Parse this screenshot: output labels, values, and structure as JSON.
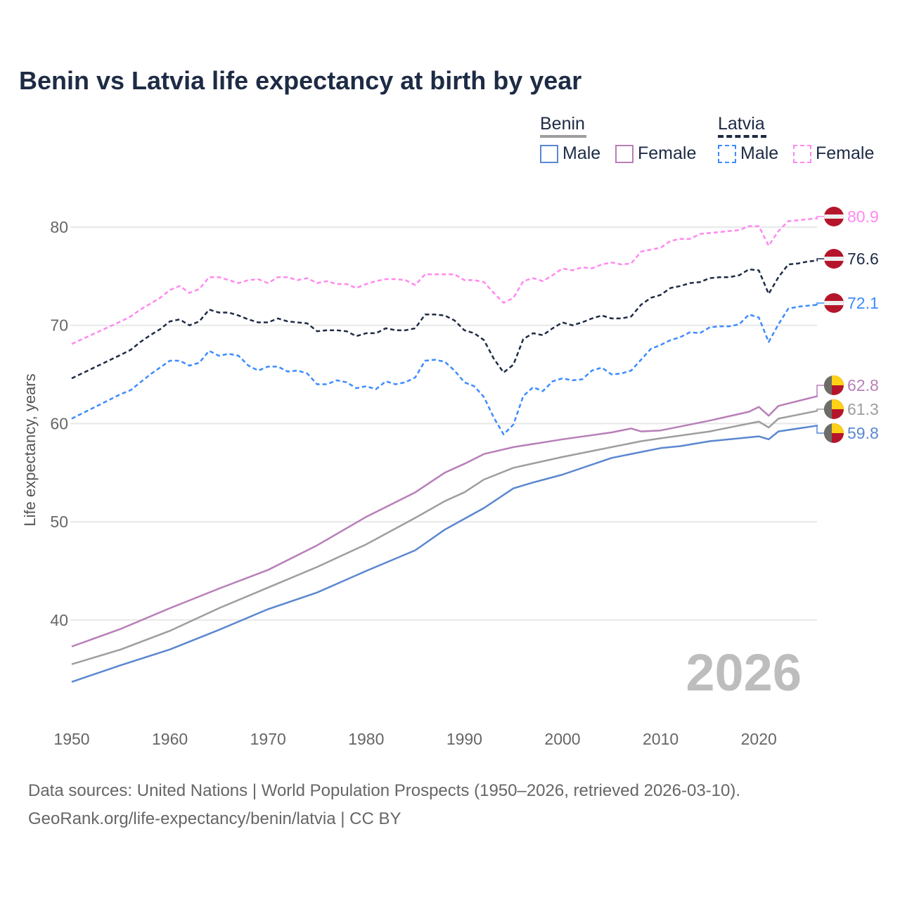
{
  "chart_data": {
    "type": "line",
    "title": "Benin vs Latvia life expectancy at birth by year",
    "xlabel": "",
    "ylabel": "Life expectancy, years",
    "xlim": [
      1950,
      2026
    ],
    "ylim": [
      33,
      82
    ],
    "x_ticks": [
      "1950",
      "1960",
      "1970",
      "1980",
      "1990",
      "2000",
      "2010",
      "2020"
    ],
    "y_ticks": [
      "40",
      "50",
      "60",
      "70",
      "80"
    ],
    "grid": "horizontal",
    "year_label": "2026",
    "legend": {
      "placement": "top-right",
      "groups": [
        {
          "name": "Benin",
          "style": "solid",
          "items": [
            "Male",
            "Female"
          ]
        },
        {
          "name": "Latvia",
          "style": "dashed",
          "items": [
            "Male",
            "Female"
          ]
        }
      ]
    },
    "series": [
      {
        "name": "Latvia Female",
        "country": "Latvia",
        "dash": true,
        "color": "#ff88f0",
        "end_label": "80.9",
        "x": [
          1950,
          1955,
          1956,
          1957,
          1958,
          1959,
          1960,
          1961,
          1962,
          1963,
          1964,
          1965,
          1966,
          1967,
          1968,
          1969,
          1970,
          1971,
          1972,
          1973,
          1974,
          1975,
          1976,
          1977,
          1978,
          1979,
          1980,
          1981,
          1982,
          1983,
          1984,
          1985,
          1986,
          1987,
          1988,
          1989,
          1990,
          1991,
          1992,
          1993,
          1994,
          1995,
          1996,
          1997,
          1998,
          1999,
          2000,
          2001,
          2002,
          2003,
          2004,
          2005,
          2006,
          2007,
          2008,
          2009,
          2010,
          2011,
          2012,
          2013,
          2014,
          2015,
          2016,
          2017,
          2018,
          2019,
          2020,
          2021,
          2022,
          2023,
          2024,
          2025,
          2026
        ],
        "y": [
          68.1,
          70.4,
          70.9,
          71.6,
          72.2,
          72.8,
          73.6,
          74.0,
          73.3,
          73.7,
          74.9,
          74.9,
          74.6,
          74.3,
          74.6,
          74.7,
          74.3,
          74.9,
          74.9,
          74.6,
          74.8,
          74.3,
          74.5,
          74.2,
          74.2,
          73.8,
          74.2,
          74.5,
          74.7,
          74.7,
          74.6,
          74.1,
          75.2,
          75.2,
          75.2,
          75.2,
          74.6,
          74.6,
          74.4,
          73.3,
          72.3,
          72.8,
          74.5,
          74.8,
          74.5,
          75.1,
          75.8,
          75.6,
          75.9,
          75.8,
          76.2,
          76.4,
          76.2,
          76.3,
          77.5,
          77.7,
          77.9,
          78.6,
          78.8,
          78.8,
          79.3,
          79.4,
          79.5,
          79.6,
          79.7,
          80.1,
          80.1,
          78.1,
          79.6,
          80.6,
          80.7,
          80.8,
          80.9
        ]
      },
      {
        "name": "Latvia",
        "country": "Latvia",
        "dash": true,
        "color": "#1e2b45",
        "end_label": "76.6",
        "x": [
          1950,
          1955,
          1956,
          1957,
          1958,
          1959,
          1960,
          1961,
          1962,
          1963,
          1964,
          1965,
          1966,
          1967,
          1968,
          1969,
          1970,
          1971,
          1972,
          1973,
          1974,
          1975,
          1976,
          1977,
          1978,
          1979,
          1980,
          1981,
          1982,
          1983,
          1984,
          1985,
          1986,
          1987,
          1988,
          1989,
          1990,
          1991,
          1992,
          1993,
          1994,
          1995,
          1996,
          1997,
          1998,
          1999,
          2000,
          2001,
          2002,
          2003,
          2004,
          2005,
          2006,
          2007,
          2008,
          2009,
          2010,
          2011,
          2012,
          2013,
          2014,
          2015,
          2016,
          2017,
          2018,
          2019,
          2020,
          2021,
          2022,
          2023,
          2024,
          2025,
          2026
        ],
        "y": [
          64.6,
          67.0,
          67.5,
          68.3,
          69.0,
          69.6,
          70.4,
          70.6,
          70.0,
          70.4,
          71.6,
          71.3,
          71.3,
          71.0,
          70.6,
          70.3,
          70.3,
          70.7,
          70.4,
          70.3,
          70.2,
          69.4,
          69.5,
          69.5,
          69.4,
          68.9,
          69.2,
          69.2,
          69.7,
          69.5,
          69.5,
          69.7,
          71.1,
          71.1,
          71.0,
          70.5,
          69.5,
          69.2,
          68.5,
          66.6,
          65.2,
          66.0,
          68.6,
          69.2,
          69.0,
          69.7,
          70.3,
          70.0,
          70.3,
          70.7,
          71.0,
          70.7,
          70.7,
          70.9,
          72.1,
          72.8,
          73.1,
          73.8,
          74.0,
          74.3,
          74.4,
          74.8,
          74.9,
          74.9,
          75.1,
          75.7,
          75.6,
          73.2,
          74.9,
          76.2,
          76.3,
          76.5,
          76.6
        ]
      },
      {
        "name": "Latvia Male",
        "country": "Latvia",
        "dash": true,
        "color": "#3d8bff",
        "end_label": "72.1",
        "x": [
          1950,
          1955,
          1956,
          1957,
          1958,
          1959,
          1960,
          1961,
          1962,
          1963,
          1964,
          1965,
          1966,
          1967,
          1968,
          1969,
          1970,
          1971,
          1972,
          1973,
          1974,
          1975,
          1976,
          1977,
          1978,
          1979,
          1980,
          1981,
          1982,
          1983,
          1984,
          1985,
          1986,
          1987,
          1988,
          1989,
          1990,
          1991,
          1992,
          1993,
          1994,
          1995,
          1996,
          1997,
          1998,
          1999,
          2000,
          2001,
          2002,
          2003,
          2004,
          2005,
          2006,
          2007,
          2008,
          2009,
          2010,
          2011,
          2012,
          2013,
          2014,
          2015,
          2016,
          2017,
          2018,
          2019,
          2020,
          2021,
          2022,
          2023,
          2024,
          2025,
          2026
        ],
        "y": [
          60.5,
          63.0,
          63.4,
          64.2,
          65.0,
          65.7,
          66.4,
          66.4,
          65.9,
          66.2,
          67.4,
          66.9,
          67.1,
          66.9,
          65.9,
          65.4,
          65.8,
          65.8,
          65.3,
          65.4,
          65.1,
          64.0,
          64.0,
          64.4,
          64.2,
          63.6,
          63.8,
          63.5,
          64.3,
          64.0,
          64.2,
          64.7,
          66.4,
          66.5,
          66.3,
          65.4,
          64.2,
          63.8,
          62.7,
          60.6,
          58.9,
          59.9,
          62.8,
          63.7,
          63.3,
          64.3,
          64.6,
          64.4,
          64.5,
          65.4,
          65.7,
          65.0,
          65.1,
          65.4,
          66.5,
          67.6,
          68.0,
          68.5,
          68.8,
          69.3,
          69.2,
          69.8,
          69.9,
          69.9,
          70.1,
          71.1,
          70.8,
          68.3,
          70.1,
          71.7,
          71.9,
          72.0,
          72.1
        ]
      },
      {
        "name": "Benin Female",
        "country": "Benin",
        "dash": false,
        "color": "#b87fb8",
        "end_label": "62.8",
        "x": [
          1950,
          1955,
          1960,
          1965,
          1970,
          1975,
          1980,
          1985,
          1988,
          1990,
          1992,
          1995,
          2000,
          2005,
          2007,
          2008,
          2010,
          2015,
          2019,
          2020,
          2021,
          2022,
          2026
        ],
        "y": [
          37.3,
          39.1,
          41.2,
          43.2,
          45.1,
          47.6,
          50.5,
          53.0,
          55.0,
          55.9,
          56.9,
          57.6,
          58.4,
          59.1,
          59.5,
          59.2,
          59.3,
          60.3,
          61.2,
          61.7,
          60.8,
          61.8,
          62.8
        ]
      },
      {
        "name": "Benin",
        "country": "Benin",
        "dash": false,
        "color": "#9e9e9e",
        "end_label": "61.3",
        "x": [
          1950,
          1955,
          1960,
          1965,
          1970,
          1975,
          1980,
          1985,
          1988,
          1990,
          1992,
          1995,
          2000,
          2005,
          2008,
          2010,
          2015,
          2019,
          2020,
          2021,
          2022,
          2026
        ],
        "y": [
          35.5,
          37.0,
          38.9,
          41.2,
          43.3,
          45.4,
          47.7,
          50.4,
          52.1,
          53.0,
          54.3,
          55.5,
          56.6,
          57.6,
          58.2,
          58.5,
          59.2,
          60.0,
          60.2,
          59.6,
          60.5,
          61.3
        ]
      },
      {
        "name": "Benin Male",
        "country": "Benin",
        "dash": false,
        "color": "#5b87d0",
        "end_label": "59.8",
        "x": [
          1950,
          1955,
          1960,
          1965,
          1970,
          1975,
          1980,
          1985,
          1988,
          1990,
          1992,
          1995,
          1997,
          2000,
          2005,
          2008,
          2010,
          2012,
          2015,
          2020,
          2021,
          2022,
          2026
        ],
        "y": [
          33.7,
          35.4,
          37.0,
          39.0,
          41.1,
          42.8,
          45.0,
          47.1,
          49.2,
          50.3,
          51.4,
          53.4,
          54.0,
          54.8,
          56.5,
          57.1,
          57.5,
          57.7,
          58.2,
          58.7,
          58.4,
          59.2,
          59.8
        ]
      }
    ]
  },
  "footer": {
    "line1": "Data sources: United Nations | World Population Prospects (1950–2026, retrieved 2026-03-10).",
    "line2": "GeoRank.org/life-expectancy/benin/latvia | CC BY"
  },
  "flags": {
    "latvia": {
      "red": "#b5152b",
      "white": "#eeeeee"
    },
    "benin": {
      "green": "#6b6e68",
      "yellow": "#fcd116",
      "red": "#b5152b"
    }
  }
}
